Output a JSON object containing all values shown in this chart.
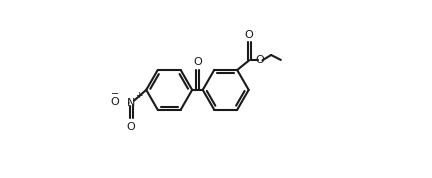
{
  "bg_color": "#ffffff",
  "lc": "#1a1a1a",
  "lw": 1.5,
  "figsize": [
    4.32,
    1.78
  ],
  "dpi": 100,
  "r": 0.13,
  "c1": [
    0.235,
    0.495
  ],
  "c2": [
    0.555,
    0.495
  ],
  "xlim": [
    0,
    1
  ],
  "ylim": [
    0,
    1
  ]
}
